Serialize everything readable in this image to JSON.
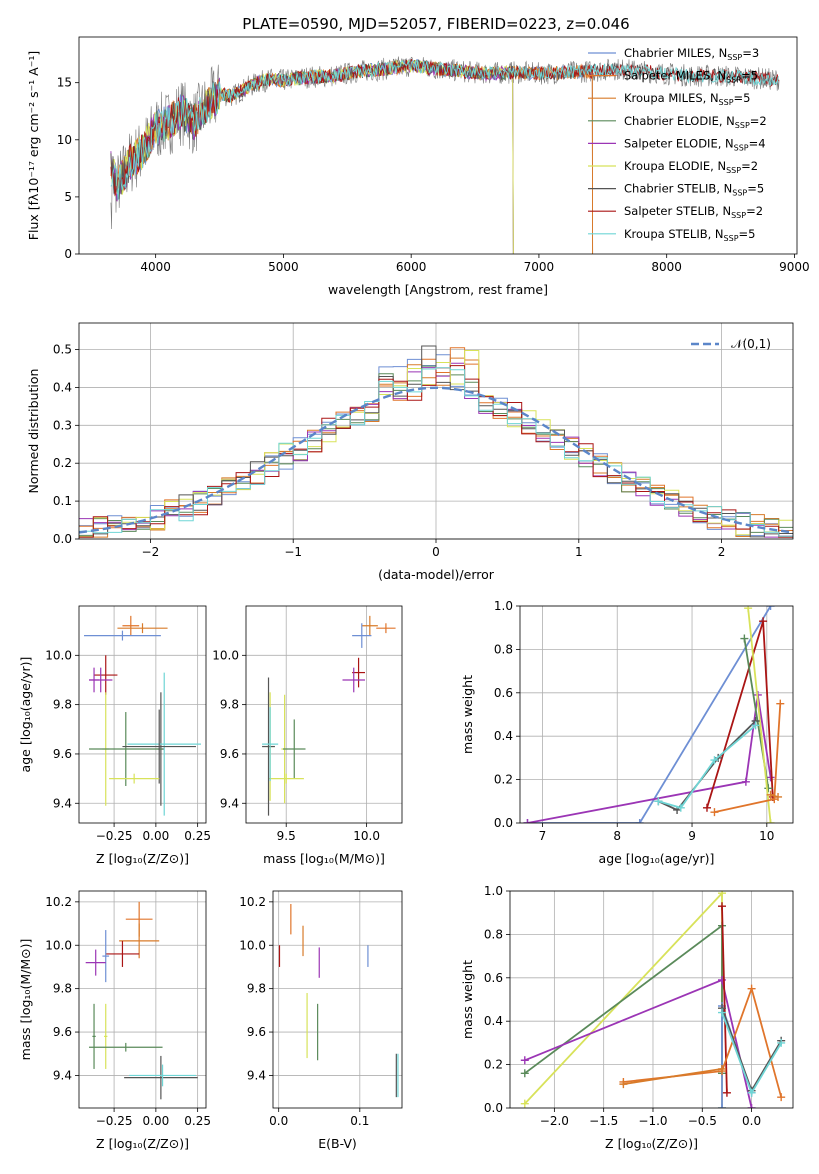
{
  "figure": {
    "title": "PLATE=0590, MJD=52057, FIBERID=0223, z=0.046"
  },
  "palette": [
    "#6e8fd4",
    "#e0752b",
    "#d87b2a",
    "#5a8a5a",
    "#9b35b5",
    "#d8e25a",
    "#555555",
    "#aa1515",
    "#6fd5d5"
  ],
  "chart_data": [
    {
      "id": "spectrum",
      "type": "line",
      "title": "PLATE=0590, MJD=52057, FIBERID=0223, z=0.046",
      "xlabel": "wavelength [Angstrom, rest frame]",
      "ylabel": "Flux [fλ10⁻¹⁷ erg cm⁻² s⁻¹ A⁻¹]",
      "xlim": [
        3400,
        9020
      ],
      "ylim": [
        0,
        19
      ],
      "xticks": [
        4000,
        5000,
        6000,
        7000,
        8000,
        9000
      ],
      "yticks": [
        0,
        5,
        10,
        15
      ],
      "grid": false,
      "legend_position": "right",
      "continuum": {
        "x": [
          3650,
          3700,
          3800,
          3900,
          4000,
          4100,
          4200,
          4300,
          4400,
          4500,
          4600,
          4700,
          4800,
          4900,
          5000,
          5200,
          5400,
          5600,
          5800,
          6000,
          6200,
          6400,
          6600,
          6800,
          7000,
          7200,
          7400,
          7600,
          7800,
          8000,
          8200,
          8400,
          8600,
          8800
        ],
        "y": [
          7.5,
          6.0,
          8.0,
          9.0,
          11.0,
          11.5,
          12.5,
          11.5,
          13.0,
          14.0,
          13.8,
          14.5,
          15.0,
          15.3,
          15.2,
          15.5,
          15.6,
          16.0,
          16.2,
          16.5,
          16.2,
          16.0,
          15.8,
          15.9,
          15.8,
          15.9,
          16.0,
          16.2,
          16.0,
          15.8,
          15.6,
          15.6,
          15.5,
          15.3
        ]
      },
      "series": [
        {
          "name": "Chabrier MILES",
          "nssp": "3",
          "end": 7420
        },
        {
          "name": "Salpeter MILES",
          "nssp": "5",
          "end": 7420
        },
        {
          "name": "Kroupa MILES",
          "nssp": "5",
          "end": 7420
        },
        {
          "name": "Chabrier ELODIE",
          "nssp": "2",
          "end": 6800
        },
        {
          "name": "Salpeter ELODIE",
          "nssp": "4",
          "end": 6800
        },
        {
          "name": "Kroupa ELODIE",
          "nssp": "2",
          "end": 6800
        },
        {
          "name": "Chabrier STELIB",
          "nssp": "5",
          "end": 8880
        },
        {
          "name": "Salpeter STELIB",
          "nssp": "2",
          "end": 8880
        },
        {
          "name": "Kroupa STELIB",
          "nssp": "5",
          "end": 8880
        }
      ],
      "data_noise_amplitude": 3.0
    },
    {
      "id": "residuals",
      "type": "histogram",
      "xlabel": "(data-model)/error",
      "ylabel": "Normed distribution",
      "xlim": [
        -2.5,
        2.5
      ],
      "ylim": [
        0,
        0.57
      ],
      "xticks": [
        -2,
        -1,
        0,
        1,
        2
      ],
      "yticks": [
        0.0,
        0.1,
        0.2,
        0.3,
        0.4,
        0.5
      ],
      "grid": true,
      "reference_curve": {
        "name": "𝒩(0,1)",
        "mean": 0,
        "sigma": 1
      },
      "bin_width": 0.1,
      "n_histograms": 9
    },
    {
      "id": "age-vs-Z",
      "type": "scatter",
      "xlabel": "Z [log₁₀(Z/Z⊙)]",
      "ylabel": "age  [log₁₀(age/yr)]",
      "xlim": [
        -0.46,
        0.3
      ],
      "ylim": [
        9.32,
        10.2
      ],
      "xticks": [
        -0.25,
        0.0,
        0.25
      ],
      "xticklabels": [
        "−0.25",
        "0.00",
        "0.25"
      ],
      "yticks": [
        9.4,
        9.6,
        9.8,
        10.0
      ],
      "grid": true,
      "points": [
        {
          "x": -0.15,
          "y": 10.12,
          "xerr": 0.05,
          "yerr": 0.04,
          "c": 1
        },
        {
          "x": -0.08,
          "y": 10.11,
          "xerr": 0.15,
          "yerr": 0.02,
          "c": 2
        },
        {
          "x": -0.2,
          "y": 10.08,
          "xerr": 0.23,
          "yerr": 0.02,
          "c": 0
        },
        {
          "x": -0.3,
          "y": 9.92,
          "xerr": 0.07,
          "yerr": 0.08,
          "c": 7
        },
        {
          "x": -0.33,
          "y": 9.9,
          "xerr": 0.07,
          "yerr": 0.05,
          "c": 4
        },
        {
          "x": -0.37,
          "y": 9.9,
          "xerr": 0.03,
          "yerr": 0.05,
          "c": 4
        },
        {
          "x": -0.3,
          "y": 9.62,
          "xerr": 0.02,
          "yerr": 0.23,
          "c": 5
        },
        {
          "x": 0.03,
          "y": 9.62,
          "xerr": 0.02,
          "yerr": 0.23,
          "c": 6
        },
        {
          "x": -0.18,
          "y": 9.62,
          "xerr": 0.22,
          "yerr": 0.15,
          "c": 3
        },
        {
          "x": 0.05,
          "y": 9.64,
          "xerr": 0.22,
          "yerr": 0.29,
          "c": 8
        },
        {
          "x": 0.02,
          "y": 9.63,
          "xerr": 0.22,
          "yerr": 0.15,
          "c": 6
        },
        {
          "x": -0.13,
          "y": 9.5,
          "xerr": 0.15,
          "yerr": 0.02,
          "c": 5
        }
      ]
    },
    {
      "id": "age-vs-mass",
      "type": "scatter",
      "xlabel": "mass [log₁₀(M/M⊙)]",
      "ylabel": "",
      "xlim": [
        9.25,
        10.22
      ],
      "ylim": [
        9.32,
        10.2
      ],
      "xticks": [
        9.5,
        10.0
      ],
      "yticks": [
        9.4,
        9.6,
        9.8,
        10.0
      ],
      "grid": true,
      "points": [
        {
          "x": 10.02,
          "y": 10.12,
          "xerr": 0.05,
          "yerr": 0.04,
          "c": 2
        },
        {
          "x": 10.12,
          "y": 10.11,
          "xerr": 0.06,
          "yerr": 0.02,
          "c": 1
        },
        {
          "x": 9.97,
          "y": 10.08,
          "xerr": 0.06,
          "yerr": 0.05,
          "c": 0
        },
        {
          "x": 9.95,
          "y": 9.93,
          "xerr": 0.04,
          "yerr": 0.06,
          "c": 7
        },
        {
          "x": 9.92,
          "y": 9.9,
          "xerr": 0.07,
          "yerr": 0.05,
          "c": 4
        },
        {
          "x": 9.4,
          "y": 9.63,
          "xerr": 0.02,
          "yerr": 0.22,
          "c": 5
        },
        {
          "x": 9.49,
          "y": 9.62,
          "xerr": 0.02,
          "yerr": 0.22,
          "c": 5
        },
        {
          "x": 9.55,
          "y": 9.62,
          "xerr": 0.07,
          "yerr": 0.12,
          "c": 3
        },
        {
          "x": 9.5,
          "y": 9.5,
          "xerr": 0.11,
          "yerr": 0.02,
          "c": 5
        },
        {
          "x": 9.39,
          "y": 9.63,
          "xerr": 0.04,
          "yerr": 0.28,
          "c": 6
        },
        {
          "x": 9.4,
          "y": 9.64,
          "xerr": 0.05,
          "yerr": 0.15,
          "c": 8
        }
      ]
    },
    {
      "id": "mass-weight-vs-age",
      "type": "line",
      "xlabel": "age  [log₁₀(age/yr)]",
      "ylabel": "mass weight",
      "xlim": [
        6.7,
        10.35
      ],
      "ylim": [
        0,
        1
      ],
      "xticks": [
        7,
        8,
        9,
        10
      ],
      "yticks": [
        0.0,
        0.2,
        0.4,
        0.6,
        0.8,
        1.0
      ],
      "grid": true,
      "lines": [
        {
          "c": 0,
          "x": [
            6.8,
            8.3,
            10.05
          ],
          "y": [
            0.0,
            0.0,
            1.0
          ]
        },
        {
          "c": 4,
          "x": [
            6.8,
            9.72,
            9.88,
            10.05
          ],
          "y": [
            0.0,
            0.19,
            0.59,
            0.21
          ]
        },
        {
          "c": 7,
          "x": [
            9.2,
            9.95,
            10.08
          ],
          "y": [
            0.07,
            0.93,
            0.12
          ]
        },
        {
          "c": 3,
          "x": [
            9.7,
            10.02
          ],
          "y": [
            0.85,
            0.16
          ]
        },
        {
          "c": 5,
          "x": [
            9.75,
            10.05
          ],
          "y": [
            0.99,
            0.0
          ]
        },
        {
          "c": 6,
          "x": [
            8.55,
            8.8,
            9.35,
            9.85
          ],
          "y": [
            0.1,
            0.06,
            0.3,
            0.47
          ]
        },
        {
          "c": 8,
          "x": [
            8.55,
            8.85,
            9.3,
            9.85
          ],
          "y": [
            0.1,
            0.07,
            0.29,
            0.45
          ]
        },
        {
          "c": 1,
          "x": [
            9.3,
            10.1,
            10.18
          ],
          "y": [
            0.05,
            0.11,
            0.55
          ]
        },
        {
          "c": 2,
          "x": [
            10.05,
            10.15
          ],
          "y": [
            0.13,
            0.12
          ]
        }
      ]
    },
    {
      "id": "mass-vs-Z",
      "type": "scatter",
      "xlabel": "Z [log₁₀(Z/Z⊙)]",
      "ylabel": "mass [log₁₀(M/M⊙)]",
      "xlim": [
        -0.46,
        0.3
      ],
      "ylim": [
        9.25,
        10.25
      ],
      "xticks": [
        -0.25,
        0.0,
        0.25
      ],
      "xticklabels": [
        "−0.25",
        "0.00",
        "0.25"
      ],
      "yticks": [
        9.4,
        9.6,
        9.8,
        10.0,
        10.2
      ],
      "grid": true,
      "points": [
        {
          "x": -0.1,
          "y": 10.12,
          "xerr": 0.08,
          "yerr": 0.08,
          "c": 1
        },
        {
          "x": -0.1,
          "y": 10.02,
          "xerr": 0.12,
          "yerr": 0.08,
          "c": 2
        },
        {
          "x": -0.2,
          "y": 9.96,
          "xerr": 0.1,
          "yerr": 0.06,
          "c": 7
        },
        {
          "x": -0.3,
          "y": 9.95,
          "xerr": 0.02,
          "yerr": 0.12,
          "c": 0
        },
        {
          "x": -0.36,
          "y": 9.92,
          "xerr": 0.06,
          "yerr": 0.06,
          "c": 4
        },
        {
          "x": -0.3,
          "y": 9.58,
          "xerr": 0.01,
          "yerr": 0.15,
          "c": 5
        },
        {
          "x": -0.37,
          "y": 9.58,
          "xerr": 0.01,
          "yerr": 0.15,
          "c": 3
        },
        {
          "x": -0.18,
          "y": 9.53,
          "xerr": 0.22,
          "yerr": 0.02,
          "c": 3
        },
        {
          "x": 0.03,
          "y": 9.39,
          "xerr": 0.22,
          "yerr": 0.1,
          "c": 6
        },
        {
          "x": 0.04,
          "y": 9.4,
          "xerr": 0.2,
          "yerr": 0.05,
          "c": 8
        }
      ]
    },
    {
      "id": "mass-vs-EBV",
      "type": "scatter",
      "xlabel": "E(B-V)",
      "ylabel": "",
      "xlim": [
        -0.007,
        0.152
      ],
      "ylim": [
        9.25,
        10.25
      ],
      "xticks": [
        0.0,
        0.1
      ],
      "yticks": [
        9.4,
        9.6,
        9.8,
        10.0,
        10.2
      ],
      "grid": true,
      "points": [
        {
          "x": 0.015,
          "y": 10.12,
          "yerr": 0.07,
          "c": 1
        },
        {
          "x": 0.03,
          "y": 10.02,
          "yerr": 0.07,
          "c": 2
        },
        {
          "x": 0.001,
          "y": 9.95,
          "yerr": 0.05,
          "c": 7
        },
        {
          "x": 0.11,
          "y": 9.95,
          "yerr": 0.05,
          "c": 0
        },
        {
          "x": 0.05,
          "y": 9.92,
          "yerr": 0.07,
          "c": 4
        },
        {
          "x": 0.035,
          "y": 9.63,
          "yerr": 0.15,
          "c": 5
        },
        {
          "x": 0.048,
          "y": 9.6,
          "yerr": 0.13,
          "c": 3
        },
        {
          "x": 0.145,
          "y": 9.4,
          "yerr": 0.1,
          "c": 6
        },
        {
          "x": 0.147,
          "y": 9.4,
          "yerr": 0.1,
          "c": 8
        }
      ]
    },
    {
      "id": "mass-weight-vs-Z",
      "type": "line",
      "xlabel": "Z [log₁₀(Z/Z⊙)]",
      "ylabel": "mass weight",
      "xlim": [
        -2.45,
        0.42
      ],
      "ylim": [
        0,
        1
      ],
      "xticks": [
        -2.0,
        -1.5,
        -1.0,
        -0.5,
        0.0
      ],
      "xticklabels": [
        "−2.0",
        "−1.5",
        "−1.0",
        "−0.5",
        "0.0"
      ],
      "yticks": [
        0.0,
        0.2,
        0.4,
        0.6,
        0.8,
        1.0
      ],
      "grid": true,
      "lines": [
        {
          "c": 5,
          "x": [
            -2.3,
            -0.3,
            -0.3
          ],
          "y": [
            0.02,
            0.99,
            0.0
          ]
        },
        {
          "c": 3,
          "x": [
            -2.3,
            -0.3,
            -0.3
          ],
          "y": [
            0.16,
            0.84,
            0.16
          ]
        },
        {
          "c": 4,
          "x": [
            -2.3,
            -0.3,
            0.0
          ],
          "y": [
            0.22,
            0.59,
            0.0
          ]
        },
        {
          "c": 0,
          "x": [
            -0.3,
            -0.3,
            0.0
          ],
          "y": [
            0.0,
            0.47,
            0.07
          ]
        },
        {
          "c": 7,
          "x": [
            -0.3,
            -0.25
          ],
          "y": [
            0.93,
            0.07
          ]
        },
        {
          "c": 1,
          "x": [
            -1.3,
            -0.3,
            0.0,
            0.3
          ],
          "y": [
            0.12,
            0.17,
            0.55,
            0.05
          ]
        },
        {
          "c": 2,
          "x": [
            -1.3,
            -0.3
          ],
          "y": [
            0.11,
            0.18
          ]
        },
        {
          "c": 6,
          "x": [
            -0.3,
            0.0,
            0.3
          ],
          "y": [
            0.46,
            0.08,
            0.31
          ]
        },
        {
          "c": 8,
          "x": [
            -0.3,
            0.0,
            0.3
          ],
          "y": [
            0.44,
            0.07,
            0.3
          ]
        }
      ]
    }
  ]
}
